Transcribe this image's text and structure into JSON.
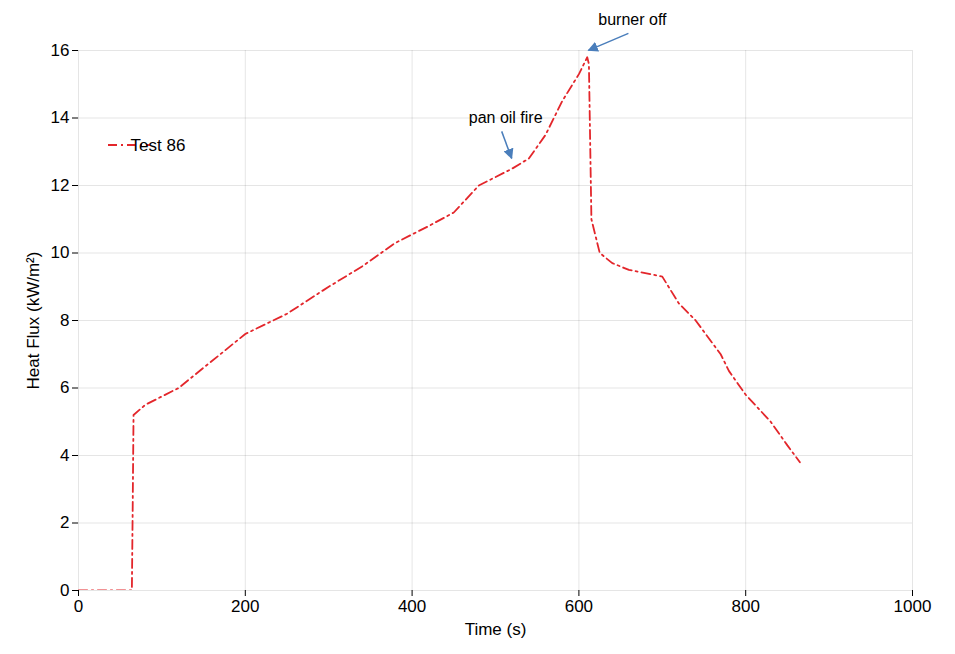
{
  "chart_data": {
    "type": "line",
    "x_label": "Time (s)",
    "y_label": "Heat Flux (kW/m²)",
    "xlim": [
      0,
      1000
    ],
    "xticks": [
      0,
      200,
      400,
      600,
      800,
      1000
    ],
    "ylim": [
      0,
      16
    ],
    "yticks": [
      0,
      2,
      4,
      6,
      8,
      10,
      12,
      14,
      16
    ],
    "grid": true,
    "legend": "upper left",
    "x": [
      0,
      30,
      64,
      65,
      66,
      80,
      120,
      170,
      200,
      250,
      300,
      340,
      380,
      420,
      450,
      480,
      520,
      540,
      560,
      580,
      600,
      610,
      612,
      615,
      625,
      640,
      660,
      700,
      720,
      740,
      770,
      780,
      800,
      830,
      850,
      865
    ],
    "series": [
      {
        "name": "Test 86",
        "color": "#e3262b",
        "line_style": "dashdot",
        "marker": "none",
        "values": [
          0,
          0,
          0,
          2.5,
          5.2,
          5.5,
          6.0,
          7.0,
          7.6,
          8.2,
          9.0,
          9.6,
          10.3,
          10.8,
          11.2,
          12.0,
          12.5,
          12.8,
          13.5,
          14.5,
          15.3,
          15.8,
          15.6,
          11.0,
          10.0,
          9.7,
          9.5,
          9.3,
          8.5,
          8.0,
          7.0,
          6.5,
          5.8,
          5.0,
          4.3,
          3.8
        ]
      }
    ],
    "annotations": [
      {
        "text": "pan oil fire",
        "x": 520,
        "y": 12.7
      },
      {
        "text": "burner off",
        "x": 612,
        "y": 15.9
      }
    ]
  }
}
